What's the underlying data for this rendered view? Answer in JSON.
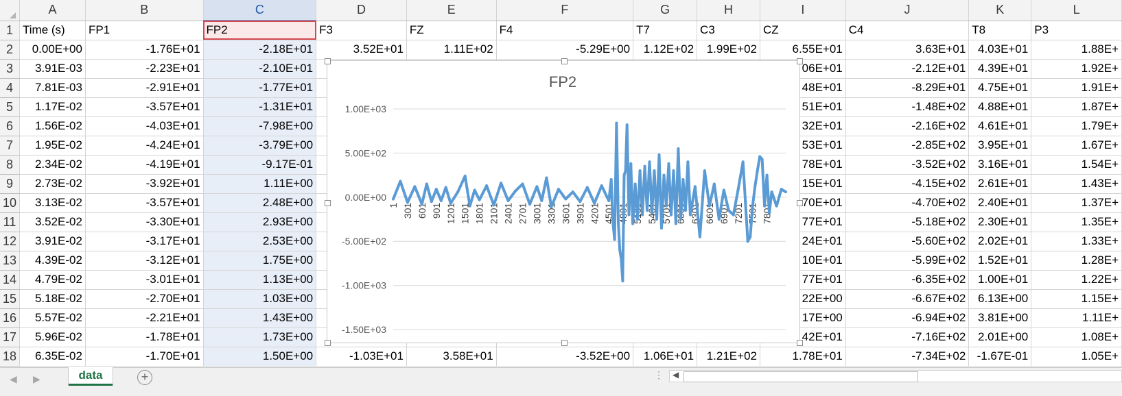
{
  "grid": {
    "columns": [
      "A",
      "B",
      "C",
      "D",
      "E",
      "F",
      "G",
      "H",
      "I",
      "J",
      "K",
      "L"
    ],
    "row_numbers": [
      "1",
      "2",
      "3",
      "4",
      "5",
      "6",
      "7",
      "8",
      "9",
      "10",
      "11",
      "12",
      "13",
      "14",
      "15",
      "16",
      "17",
      "18"
    ],
    "header_row": [
      "Time (s)",
      "FP1",
      "FP2",
      "F3",
      "FZ",
      "F4",
      "T7",
      "C3",
      "CZ",
      "C4",
      "T8",
      "P3"
    ],
    "rows": [
      [
        "0.00E+00",
        "-1.76E+01",
        "-2.18E+01",
        "3.52E+01",
        "1.11E+02",
        "-5.29E+00",
        "1.12E+02",
        "1.99E+02",
        "6.55E+01",
        "3.63E+01",
        "4.03E+01",
        "1.88E+"
      ],
      [
        "3.91E-03",
        "-2.23E+01",
        "-2.10E+01",
        "",
        "",
        "",
        "",
        "",
        "06E+01",
        "-2.12E+01",
        "4.39E+01",
        "1.92E+"
      ],
      [
        "7.81E-03",
        "-2.91E+01",
        "-1.77E+01",
        "",
        "",
        "",
        "",
        "",
        "48E+01",
        "-8.29E+01",
        "4.75E+01",
        "1.91E+"
      ],
      [
        "1.17E-02",
        "-3.57E+01",
        "-1.31E+01",
        "",
        "",
        "",
        "",
        "",
        "51E+01",
        "-1.48E+02",
        "4.88E+01",
        "1.87E+"
      ],
      [
        "1.56E-02",
        "-4.03E+01",
        "-7.98E+00",
        "",
        "",
        "",
        "",
        "",
        "32E+01",
        "-2.16E+02",
        "4.61E+01",
        "1.79E+"
      ],
      [
        "1.95E-02",
        "-4.24E+01",
        "-3.79E+00",
        "",
        "",
        "",
        "",
        "",
        "53E+01",
        "-2.85E+02",
        "3.95E+01",
        "1.67E+"
      ],
      [
        "2.34E-02",
        "-4.19E+01",
        "-9.17E-01",
        "",
        "",
        "",
        "",
        "",
        "78E+01",
        "-3.52E+02",
        "3.16E+01",
        "1.54E+"
      ],
      [
        "2.73E-02",
        "-3.92E+01",
        "1.11E+00",
        "",
        "",
        "",
        "",
        "",
        "15E+01",
        "-4.15E+02",
        "2.61E+01",
        "1.43E+"
      ],
      [
        "3.13E-02",
        "-3.57E+01",
        "2.48E+00",
        "",
        "",
        "",
        "",
        "",
        "70E+01",
        "-4.70E+02",
        "2.40E+01",
        "1.37E+"
      ],
      [
        "3.52E-02",
        "-3.30E+01",
        "2.93E+00",
        "",
        "",
        "",
        "",
        "",
        "77E+01",
        "-5.18E+02",
        "2.30E+01",
        "1.35E+"
      ],
      [
        "3.91E-02",
        "-3.17E+01",
        "2.53E+00",
        "",
        "",
        "",
        "",
        "",
        "24E+01",
        "-5.60E+02",
        "2.02E+01",
        "1.33E+"
      ],
      [
        "4.39E-02",
        "-3.12E+01",
        "1.75E+00",
        "",
        "",
        "",
        "",
        "",
        "10E+01",
        "-5.99E+02",
        "1.52E+01",
        "1.28E+"
      ],
      [
        "4.79E-02",
        "-3.01E+01",
        "1.13E+00",
        "",
        "",
        "",
        "",
        "",
        "77E+01",
        "-6.35E+02",
        "1.00E+01",
        "1.22E+"
      ],
      [
        "5.18E-02",
        "-2.70E+01",
        "1.03E+00",
        "",
        "",
        "",
        "",
        "",
        "22E+00",
        "-6.67E+02",
        "6.13E+00",
        "1.15E+"
      ],
      [
        "5.57E-02",
        "-2.21E+01",
        "1.43E+00",
        "",
        "",
        "",
        "",
        "",
        "17E+00",
        "-6.94E+02",
        "3.81E+00",
        "1.11E+"
      ],
      [
        "5.96E-02",
        "-1.78E+01",
        "1.73E+00",
        "",
        "",
        "",
        "",
        "",
        "42E+01",
        "-7.16E+02",
        "2.01E+00",
        "1.08E+"
      ],
      [
        "6.35E-02",
        "-1.70E+01",
        "1.50E+00",
        "-1.03E+01",
        "3.58E+01",
        "-3.52E+00",
        "1.06E+01",
        "1.21E+02",
        "1.78E+01",
        "-7.34E+02",
        "-1.67E-01",
        "1.05E+"
      ]
    ]
  },
  "chart_data": {
    "type": "line",
    "title": "FP2",
    "xlabel": "",
    "ylabel": "",
    "ylim": [
      -1500,
      1000
    ],
    "yticks": [
      "1.00E+03",
      "5.00E+02",
      "0.00E+00",
      "-5.00E+02",
      "-1.00E+03",
      "-1.50E+03"
    ],
    "ytick_values": [
      1000,
      500,
      0,
      -500,
      -1000,
      -1500
    ],
    "xrange": [
      1,
      8192
    ],
    "xticks": [
      "1",
      "301",
      "601",
      "901",
      "1201",
      "1501",
      "1801",
      "2101",
      "2401",
      "2701",
      "3001",
      "3301",
      "3601",
      "3901",
      "4201",
      "4501",
      "4801",
      "5101",
      "5401",
      "5701",
      "6001",
      "6301",
      "6601",
      "6901",
      "7201",
      "7501",
      "7801"
    ],
    "grid": true,
    "series_color": "#5b9bd5",
    "series": [
      {
        "name": "FP2",
        "x": [
          1,
          150,
          300,
          450,
          600,
          700,
          800,
          900,
          1000,
          1100,
          1200,
          1350,
          1500,
          1600,
          1700,
          1800,
          1950,
          2100,
          2250,
          2400,
          2550,
          2700,
          2850,
          3000,
          3100,
          3200,
          3300,
          3450,
          3600,
          3750,
          3900,
          4050,
          4200,
          4350,
          4500,
          4550,
          4580,
          4620,
          4660,
          4700,
          4730,
          4760,
          4790,
          4820,
          4850,
          4880,
          4920,
          4960,
          5000,
          5050,
          5100,
          5150,
          5200,
          5250,
          5300,
          5350,
          5400,
          5450,
          5500,
          5550,
          5600,
          5650,
          5700,
          5750,
          5800,
          5850,
          5900,
          5950,
          6000,
          6050,
          6100,
          6150,
          6200,
          6300,
          6400,
          6500,
          6600,
          6700,
          6800,
          6900,
          7000,
          7100,
          7200,
          7300,
          7350,
          7400,
          7450,
          7500,
          7550,
          7600,
          7650,
          7700,
          7750,
          7800,
          7850,
          7900,
          8000,
          8100,
          8192
        ],
        "y": [
          -22,
          180,
          -60,
          120,
          -80,
          150,
          -50,
          90,
          -40,
          110,
          -70,
          60,
          240,
          -100,
          80,
          -30,
          130,
          -90,
          160,
          -40,
          70,
          150,
          -80,
          120,
          -40,
          220,
          -110,
          90,
          -20,
          60,
          -50,
          110,
          -70,
          130,
          -40,
          200,
          -250,
          -480,
          840,
          -300,
          -600,
          -700,
          -950,
          250,
          300,
          820,
          -200,
          380,
          -300,
          150,
          -250,
          300,
          -200,
          350,
          -150,
          400,
          -180,
          300,
          -250,
          480,
          -350,
          250,
          -100,
          380,
          -200,
          300,
          -300,
          550,
          -250,
          200,
          -150,
          400,
          -200,
          120,
          -450,
          300,
          -100,
          150,
          -250,
          80,
          -150,
          -200,
          90,
          400,
          -50,
          -500,
          -450,
          -100,
          120,
          300,
          460,
          430,
          -100,
          250,
          -180,
          60,
          -100,
          90,
          60
        ]
      }
    ]
  }
}
